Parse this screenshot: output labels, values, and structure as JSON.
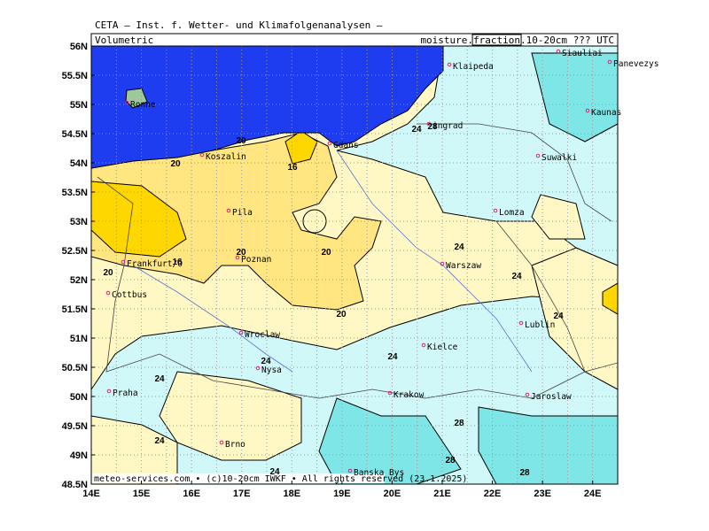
{
  "header": {
    "title": "CETA – Inst. f. Wetter- und Klimafolgenanalysen –",
    "left_label": "Volumetric",
    "right_prefix": "moisture.",
    "right_boxed": "fraction",
    "right_suffix": ".10-20cm ??? UTC"
  },
  "footer": "meteo-services.com • (c)10-20cm IWKF • All rights reserved (23.1.2025)",
  "map": {
    "xlim": [
      14,
      24.5
    ],
    "ylim": [
      48.5,
      56
    ],
    "xticks": [
      {
        "value": 14,
        "label": "14E"
      },
      {
        "value": 15,
        "label": "15E"
      },
      {
        "value": 16,
        "label": "16E"
      },
      {
        "value": 17,
        "label": "17E"
      },
      {
        "value": 18,
        "label": "18E"
      },
      {
        "value": 19,
        "label": "19E"
      },
      {
        "value": 20,
        "label": "20E"
      },
      {
        "value": 21,
        "label": "21E"
      },
      {
        "value": 22,
        "label": "22E"
      },
      {
        "value": 23,
        "label": "23E"
      },
      {
        "value": 24,
        "label": "24E"
      }
    ],
    "yticks": [
      {
        "value": 56,
        "label": "56N"
      },
      {
        "value": 55.5,
        "label": "55.5N"
      },
      {
        "value": 55,
        "label": "55N"
      },
      {
        "value": 54.5,
        "label": "54.5N"
      },
      {
        "value": 54,
        "label": "54N"
      },
      {
        "value": 53.5,
        "label": "53.5N"
      },
      {
        "value": 53,
        "label": "53N"
      },
      {
        "value": 52.5,
        "label": "52.5N"
      },
      {
        "value": 52,
        "label": "52N"
      },
      {
        "value": 51.5,
        "label": "51.5N"
      },
      {
        "value": 51,
        "label": "51N"
      },
      {
        "value": 50.5,
        "label": "50.5N"
      },
      {
        "value": 50,
        "label": "50N"
      },
      {
        "value": 49.5,
        "label": "49.5N"
      },
      {
        "value": 49,
        "label": "49N"
      },
      {
        "value": 48.5,
        "label": "48.5N"
      }
    ],
    "cities": [
      "Ronne",
      "Klaipeda",
      "Siauliai",
      "Panevezys",
      "Kaunas",
      "ingrad",
      "Gdans",
      "Koszalin",
      "Suwalki",
      "Pila",
      "Lomza",
      "Frankfurt/O",
      "Poznan",
      "Warszaw",
      "Cottbus",
      "Wroclaw",
      "Nysa",
      "Lublin",
      "Kielce",
      "Praha",
      "Krakow",
      "Jaroslaw",
      "Brno",
      "Banska Bys"
    ],
    "contour_labels": [
      20,
      16,
      20,
      24,
      28,
      20,
      16,
      20,
      20,
      20,
      24,
      24,
      24,
      24,
      24,
      24,
      24,
      28,
      28,
      28,
      24
    ]
  }
}
